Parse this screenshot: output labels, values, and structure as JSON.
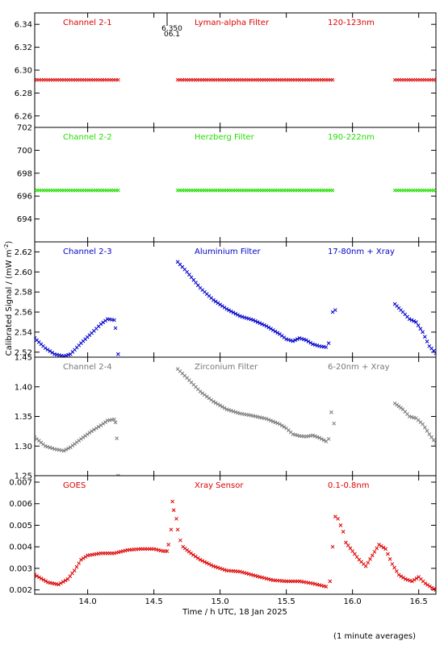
{
  "xlabel": "Time / h UTC, 18 Jan 2025",
  "ylabel": "Calibrated Signal / (mW m",
  "ylabel_sup": "-2",
  "ylabel_close": ")",
  "footnote": "(1 minute averages)",
  "marker_label_top": "6.350",
  "marker_label_bottom": "06.1",
  "colors": {
    "red": "#dd0000",
    "green": "#22dd00",
    "blue": "#0000cc",
    "gray": "#777777",
    "axis": "#000000"
  },
  "chart_data": [
    {
      "type": "scatter",
      "label_left": "Channel 2-1",
      "label_mid": "Lyman-alpha Filter",
      "label_right": "120-123nm",
      "color": "red",
      "xlim": [
        13.6,
        16.63
      ],
      "ylim": [
        6.25,
        6.35
      ],
      "yticks": [
        "6.26",
        "6.28",
        "6.30",
        "6.32",
        "6.34"
      ],
      "segments": [
        [
          [
            13.6,
            6.2915
          ],
          [
            14.23,
            6.2915
          ]
        ],
        [
          [
            14.68,
            6.2915
          ],
          [
            15.85,
            6.2915
          ]
        ],
        [
          [
            16.32,
            6.2915
          ],
          [
            16.63,
            6.2915
          ]
        ]
      ]
    },
    {
      "type": "scatter",
      "label_left": "Channel 2-2",
      "label_mid": "Herzberg Filter",
      "label_right": "190-222nm",
      "color": "green",
      "xlim": [
        13.6,
        16.63
      ],
      "ylim": [
        692,
        702
      ],
      "yticks": [
        "694",
        "696",
        "698",
        "700",
        "702"
      ],
      "segments": [
        [
          [
            13.6,
            696.5
          ],
          [
            14.23,
            696.5
          ]
        ],
        [
          [
            14.68,
            696.5
          ],
          [
            15.85,
            696.5
          ]
        ],
        [
          [
            16.32,
            696.5
          ],
          [
            16.63,
            696.5
          ]
        ]
      ]
    },
    {
      "type": "scatter",
      "label_left": "Channel 2-3",
      "label_mid": "Aluminium Filter",
      "label_right": "17-80nm + Xray",
      "color": "blue",
      "xlim": [
        13.6,
        16.63
      ],
      "ylim": [
        2.515,
        2.63
      ],
      "yticks": [
        "2.52",
        "2.54",
        "2.56",
        "2.58",
        "2.60",
        "2.62"
      ],
      "segments": [
        [
          [
            13.6,
            2.534
          ],
          [
            13.68,
            2.524
          ],
          [
            13.75,
            2.518
          ],
          [
            13.82,
            2.516
          ],
          [
            13.87,
            2.518
          ],
          [
            13.95,
            2.529
          ],
          [
            14.03,
            2.539
          ],
          [
            14.1,
            2.548
          ],
          [
            14.15,
            2.553
          ],
          [
            14.2,
            2.552
          ]
        ],
        [
          [
            14.21,
            2.544
          ],
          [
            14.23,
            2.518
          ]
        ],
        [
          [
            14.68,
            2.61
          ],
          [
            14.75,
            2.6
          ],
          [
            14.85,
            2.584
          ],
          [
            14.95,
            2.572
          ],
          [
            15.05,
            2.563
          ],
          [
            15.15,
            2.556
          ],
          [
            15.25,
            2.552
          ],
          [
            15.35,
            2.546
          ],
          [
            15.45,
            2.538
          ],
          [
            15.5,
            2.533
          ],
          [
            15.55,
            2.531
          ],
          [
            15.6,
            2.534
          ],
          [
            15.65,
            2.532
          ],
          [
            15.7,
            2.528
          ],
          [
            15.75,
            2.526
          ],
          [
            15.8,
            2.525
          ],
          [
            15.82,
            2.529
          ]
        ],
        [
          [
            15.85,
            2.56
          ],
          [
            15.87,
            2.562
          ]
        ],
        [
          [
            16.32,
            2.568
          ],
          [
            16.38,
            2.56
          ],
          [
            16.43,
            2.553
          ],
          [
            16.48,
            2.55
          ],
          [
            16.53,
            2.54
          ],
          [
            16.58,
            2.526
          ],
          [
            16.63,
            2.519
          ]
        ]
      ]
    },
    {
      "type": "scatter",
      "label_left": "Channel 2-4",
      "label_mid": "Zirconium Filter",
      "label_right": "6-20nm + Xray",
      "color": "gray",
      "xlim": [
        13.6,
        16.63
      ],
      "ylim": [
        1.25,
        1.45
      ],
      "yticks": [
        "1.25",
        "1.30",
        "1.35",
        "1.40",
        "1.45"
      ],
      "segments": [
        [
          [
            13.6,
            1.315
          ],
          [
            13.68,
            1.3
          ],
          [
            13.75,
            1.295
          ],
          [
            13.82,
            1.292
          ],
          [
            13.87,
            1.298
          ],
          [
            13.95,
            1.312
          ],
          [
            14.03,
            1.325
          ],
          [
            14.1,
            1.335
          ],
          [
            14.15,
            1.343
          ],
          [
            14.2,
            1.345
          ]
        ],
        [
          [
            14.21,
            1.34
          ],
          [
            14.22,
            1.313
          ],
          [
            14.23,
            1.25
          ]
        ],
        [
          [
            14.68,
            1.43
          ],
          [
            14.75,
            1.415
          ],
          [
            14.85,
            1.392
          ],
          [
            14.95,
            1.375
          ],
          [
            15.05,
            1.362
          ],
          [
            15.15,
            1.355
          ],
          [
            15.25,
            1.351
          ],
          [
            15.35,
            1.346
          ],
          [
            15.45,
            1.337
          ],
          [
            15.5,
            1.33
          ],
          [
            15.55,
            1.32
          ],
          [
            15.6,
            1.317
          ],
          [
            15.65,
            1.316
          ],
          [
            15.7,
            1.318
          ],
          [
            15.75,
            1.314
          ],
          [
            15.8,
            1.308
          ],
          [
            15.82,
            1.312
          ]
        ],
        [
          [
            15.84,
            1.357
          ],
          [
            15.86,
            1.338
          ]
        ],
        [
          [
            16.32,
            1.372
          ],
          [
            16.38,
            1.362
          ],
          [
            16.43,
            1.35
          ],
          [
            16.48,
            1.347
          ],
          [
            16.53,
            1.337
          ],
          [
            16.58,
            1.32
          ],
          [
            16.63,
            1.305
          ]
        ]
      ]
    },
    {
      "type": "scatter",
      "label_left": "GOES",
      "label_mid": "Xray Sensor",
      "label_right": "0.1-0.8nm",
      "color": "red",
      "xlim": [
        13.6,
        16.63
      ],
      "ylim": [
        0.0018,
        0.0073
      ],
      "yticks": [
        "0.002",
        "0.003",
        "0.004",
        "0.005",
        "0.006",
        "0.007"
      ],
      "segments": [
        [
          [
            13.6,
            0.0027
          ],
          [
            13.7,
            0.00235
          ],
          [
            13.78,
            0.00225
          ],
          [
            13.85,
            0.0025
          ],
          [
            13.9,
            0.0029
          ],
          [
            13.95,
            0.0034
          ],
          [
            14.0,
            0.0036
          ],
          [
            14.1,
            0.0037
          ],
          [
            14.2,
            0.0037
          ],
          [
            14.3,
            0.00385
          ],
          [
            14.4,
            0.0039
          ],
          [
            14.5,
            0.0039
          ],
          [
            14.57,
            0.0038
          ],
          [
            14.6,
            0.0038
          ]
        ],
        [
          [
            14.61,
            0.0041
          ],
          [
            14.63,
            0.0048
          ],
          [
            14.64,
            0.0061
          ],
          [
            14.65,
            0.0057
          ],
          [
            14.67,
            0.0053
          ],
          [
            14.68,
            0.0048
          ],
          [
            14.7,
            0.0043
          ],
          [
            14.72,
            0.004
          ],
          [
            14.78,
            0.0037
          ],
          [
            14.85,
            0.0034
          ],
          [
            14.95,
            0.0031
          ],
          [
            15.05,
            0.0029
          ],
          [
            15.15,
            0.00285
          ],
          [
            15.3,
            0.0026
          ],
          [
            15.4,
            0.00245
          ],
          [
            15.5,
            0.0024
          ],
          [
            15.6,
            0.0024
          ],
          [
            15.7,
            0.0023
          ],
          [
            15.8,
            0.00215
          ]
        ],
        [
          [
            15.83,
            0.0024
          ],
          [
            15.85,
            0.004
          ]
        ],
        [
          [
            15.87,
            0.0054
          ],
          [
            15.89,
            0.0053
          ],
          [
            15.91,
            0.005
          ],
          [
            15.93,
            0.0047
          ],
          [
            15.95,
            0.0042
          ],
          [
            16.0,
            0.0038
          ],
          [
            16.05,
            0.0034
          ],
          [
            16.1,
            0.0031
          ],
          [
            16.15,
            0.0036
          ],
          [
            16.2,
            0.0041
          ],
          [
            16.25,
            0.0039
          ],
          [
            16.3,
            0.0032
          ],
          [
            16.35,
            0.0027
          ],
          [
            16.4,
            0.0025
          ],
          [
            16.45,
            0.0024
          ],
          [
            16.5,
            0.0026
          ],
          [
            16.55,
            0.0023
          ],
          [
            16.6,
            0.0021
          ],
          [
            16.63,
            0.002
          ]
        ]
      ]
    }
  ],
  "xaxis": {
    "ticks": [
      "14.0",
      "14.5",
      "15.0",
      "15.5",
      "16.0",
      "16.5"
    ],
    "tick_values": [
      14.0,
      14.5,
      15.0,
      15.5,
      16.0,
      16.5
    ]
  }
}
